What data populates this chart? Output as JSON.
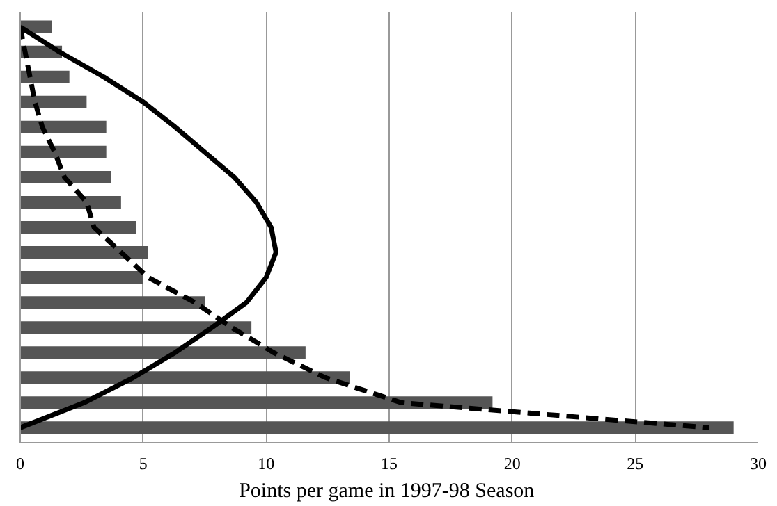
{
  "chart_data": {
    "type": "bar",
    "orientation": "horizontal",
    "xlabel": "Points per game in  1997-98 Season",
    "categories": [
      null,
      null,
      null,
      null,
      null,
      null,
      null,
      null,
      null,
      null,
      null,
      null,
      null,
      null,
      null,
      null,
      null
    ],
    "series": [
      {
        "color": "#555555",
        "values": [
          1.3,
          1.7,
          2.0,
          2.7,
          3.5,
          3.5,
          3.7,
          4.1,
          4.7,
          5.2,
          5.0,
          7.5,
          9.4,
          11.6,
          13.4,
          19.2,
          29.0
        ]
      },
      {
        "type": "line",
        "color": "#000000",
        "line_style": "solid",
        "values": [
          0,
          1.6,
          3.4,
          5.0,
          6.3,
          7.5,
          8.7,
          9.6,
          10.2,
          10.4,
          10.0,
          9.2,
          7.8,
          6.3,
          4.6,
          2.6,
          0
        ]
      },
      {
        "type": "line",
        "color": "#000000",
        "line_style": "dashed",
        "values": [
          0,
          0.2,
          0.4,
          0.6,
          0.9,
          1.4,
          1.8,
          2.7,
          3.0,
          4.1,
          5.2,
          7.1,
          8.6,
          10.3,
          12.4,
          15.5,
          28.0
        ]
      }
    ],
    "xlim": [
      0,
      30
    ],
    "xticks": [
      0,
      5,
      10,
      15,
      20,
      25,
      30
    ],
    "grid": "x",
    "tick_labels": "x"
  }
}
